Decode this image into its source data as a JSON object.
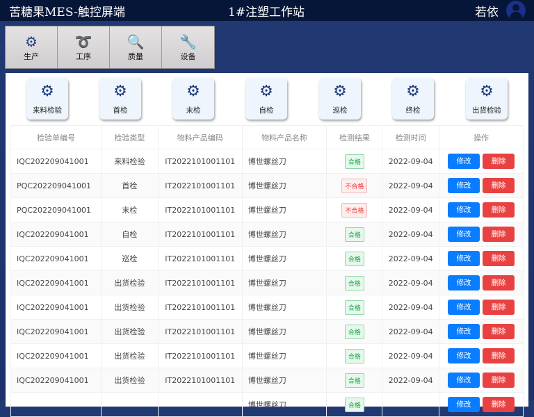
{
  "header": {
    "app_title": "苦糖果MES-触控屏端",
    "station": "1#注塑工作站",
    "user": "若依"
  },
  "nav": [
    {
      "label": "生产",
      "icon": "gears-icon"
    },
    {
      "label": "工序",
      "icon": "process-icon"
    },
    {
      "label": "质量",
      "icon": "quality-search-icon"
    },
    {
      "label": "设备",
      "icon": "equipment-icon"
    }
  ],
  "categories": [
    {
      "label": "来料检验"
    },
    {
      "label": "首检"
    },
    {
      "label": "末检"
    },
    {
      "label": "自检"
    },
    {
      "label": "巡检"
    },
    {
      "label": "终检"
    },
    {
      "label": "出货检验"
    }
  ],
  "table": {
    "headers": [
      "检验单编号",
      "检验类型",
      "物料产品编码",
      "物料产品名称",
      "检测结果",
      "检测时间",
      "操作"
    ],
    "edit_label": "修改",
    "delete_label": "删除",
    "rows": [
      {
        "id": "IQC202209041001",
        "type": "来料检验",
        "code": "IT2022101001101",
        "name": "博世螺丝刀",
        "result": "合格",
        "date": "2022-09-04"
      },
      {
        "id": "PQC202209041001",
        "type": "首检",
        "code": "IT2022101001101",
        "name": "博世螺丝刀",
        "result": "不合格",
        "date": "2022-09-04"
      },
      {
        "id": "PQC202209041001",
        "type": "末检",
        "code": "IT2022101001101",
        "name": "博世螺丝刀",
        "result": "不合格",
        "date": "2022-09-04"
      },
      {
        "id": "IQC202209041001",
        "type": "自检",
        "code": "IT2022101001101",
        "name": "博世螺丝刀",
        "result": "合格",
        "date": "2022-09-04"
      },
      {
        "id": "IQC202209041001",
        "type": "巡检",
        "code": "IT2022101001101",
        "name": "博世螺丝刀",
        "result": "合格",
        "date": "2022-09-04"
      },
      {
        "id": "IQC202209041001",
        "type": "出货检验",
        "code": "IT2022101001101",
        "name": "博世螺丝刀",
        "result": "合格",
        "date": "2022-09-04"
      },
      {
        "id": "IQC202209041001",
        "type": "出货检验",
        "code": "IT2022101001101",
        "name": "博世螺丝刀",
        "result": "合格",
        "date": "2022-09-04"
      },
      {
        "id": "IQC202209041001",
        "type": "出货检验",
        "code": "IT2022101001101",
        "name": "博世螺丝刀",
        "result": "合格",
        "date": "2022-09-04"
      },
      {
        "id": "IQC202209041001",
        "type": "出货检验",
        "code": "IT2022101001101",
        "name": "博世螺丝刀",
        "result": "合格",
        "date": "2022-09-04"
      },
      {
        "id": "IQC202209041001",
        "type": "出货检验",
        "code": "IT2022101001101",
        "name": "博世螺丝刀",
        "result": "合格",
        "date": "2022-09-04"
      },
      {
        "id": "",
        "type": "",
        "code": "",
        "name": "博世螺丝刀",
        "result": "合格",
        "date": ""
      }
    ]
  }
}
